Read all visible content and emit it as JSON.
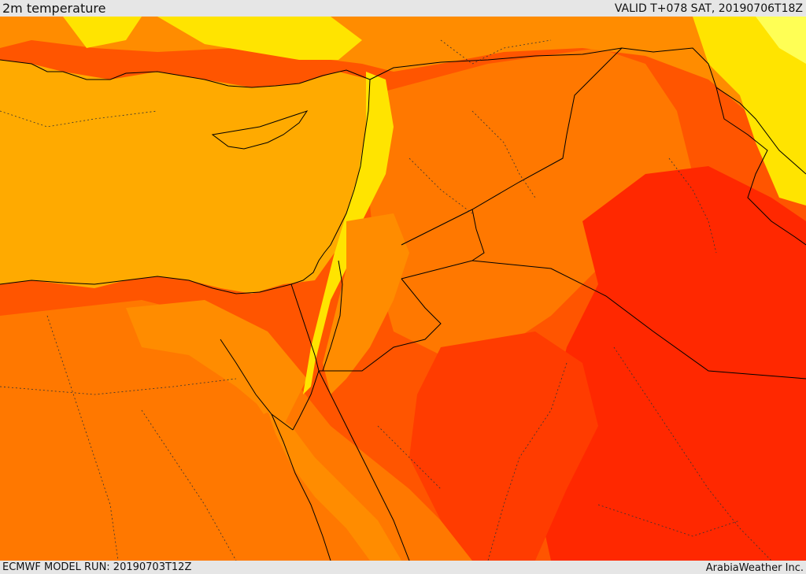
{
  "header": {
    "field_title": "2m temperature",
    "valid_time": "VALID T+078 SAT, 20190706T18Z"
  },
  "footer": {
    "model_run": "ECMWF MODEL RUN: 20190703T12Z",
    "credit": "ArabiaWeather Inc."
  },
  "palette": {
    "sea_orange": "#ffaa00",
    "yellow": "#ffe400",
    "light_yellow": "#ffff55",
    "light_orange": "#ff8c00",
    "orange": "#ff7800",
    "dark_orange": "#ff5500",
    "red_orange": "#ff3c00",
    "red": "#ff2800",
    "border_line": "#000000"
  }
}
